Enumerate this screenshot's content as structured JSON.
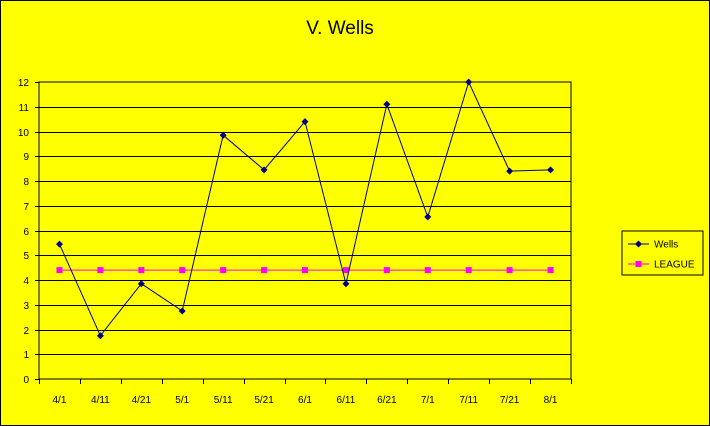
{
  "chart_data": {
    "type": "line",
    "title": "V. Wells",
    "xlabel": "",
    "ylabel": "",
    "categories": [
      "4/1",
      "4/11",
      "4/21",
      "5/1",
      "5/11",
      "5/21",
      "6/1",
      "6/11",
      "6/21",
      "7/1",
      "7/11",
      "7/21",
      "8/1"
    ],
    "ylim": [
      0,
      12
    ],
    "yticks": [
      0,
      1,
      2,
      3,
      4,
      5,
      6,
      7,
      8,
      9,
      10,
      11,
      12
    ],
    "grid": true,
    "legend_position": "right",
    "series": [
      {
        "name": "Wells",
        "color": "#000080",
        "marker": "diamond",
        "values": [
          5.45,
          1.75,
          3.85,
          2.75,
          9.85,
          8.45,
          10.4,
          3.85,
          11.1,
          6.55,
          12.0,
          8.4,
          8.45
        ]
      },
      {
        "name": "LEAGUE",
        "color": "#ff00ff",
        "marker": "square",
        "values": [
          4.4,
          4.4,
          4.4,
          4.4,
          4.4,
          4.4,
          4.4,
          4.4,
          4.4,
          4.4,
          4.4,
          4.4,
          4.4
        ]
      }
    ],
    "colors": {
      "background": "#ffff00",
      "plot_area": "#ffff00",
      "gridline": "#000000"
    }
  }
}
